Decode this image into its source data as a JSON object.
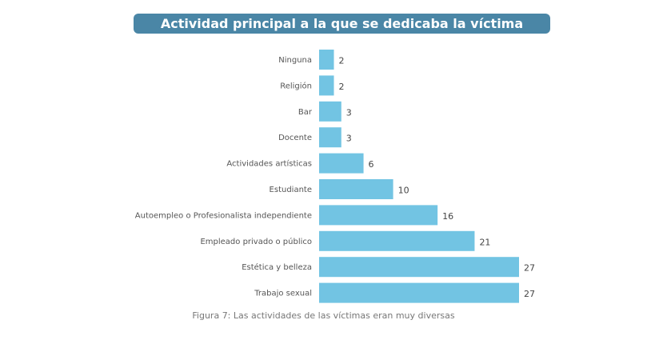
{
  "chart_data": {
    "type": "bar",
    "orientation": "horizontal",
    "title": "Actividad principal a la que se dedicaba la víctima",
    "categories": [
      "Ninguna",
      "Religión",
      "Bar",
      "Docente",
      "Actividades artísticas",
      "Estudiante",
      "Autoempleo o Profesionalista independiente",
      "Empleado privado o público",
      "Estética y belleza",
      "Trabajo sexual"
    ],
    "values": [
      2,
      2,
      3,
      3,
      6,
      10,
      16,
      21,
      27,
      27
    ],
    "xlim": [
      0,
      27
    ],
    "grid": false,
    "data_labels": true,
    "colors": {
      "bar": "#72c4e3",
      "title_bg": "#4a86a6"
    }
  },
  "caption": "Figura 7: Las actividades de las víctimas eran muy diversas"
}
